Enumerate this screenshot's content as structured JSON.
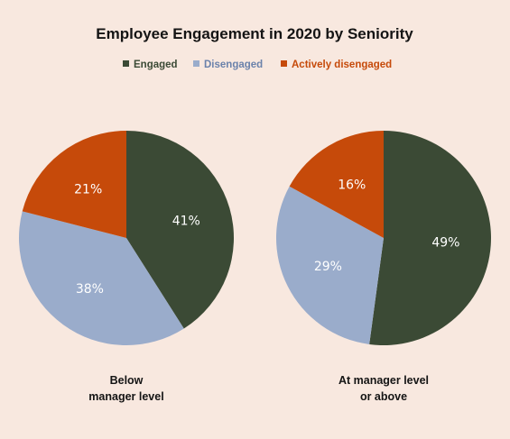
{
  "chart_data": {
    "type": "pie",
    "title": "Employee Engagement in 2020 by Seniority",
    "legend_position": "top",
    "series_names": [
      "Engaged",
      "Disengaged",
      "Actively disengaged"
    ],
    "colors": {
      "Engaged": "#3b4a35",
      "Disengaged": "#9aaccb",
      "Actively disengaged": "#c64a0a"
    },
    "legend_text_colors": {
      "Engaged": "#3b4a35",
      "Disengaged": "#6b82ab",
      "Actively disengaged": "#c64a0a"
    },
    "pies": [
      {
        "caption": [
          "Below",
          "manager level"
        ],
        "slices": [
          {
            "name": "Engaged",
            "value": 41,
            "label": "41%"
          },
          {
            "name": "Disengaged",
            "value": 38,
            "label": "38%"
          },
          {
            "name": "Actively disengaged",
            "value": 21,
            "label": "21%"
          }
        ]
      },
      {
        "caption": [
          "At manager level",
          "or above"
        ],
        "slices": [
          {
            "name": "Engaged",
            "value": 49,
            "label": "49%"
          },
          {
            "name": "Disengaged",
            "value": 29,
            "label": "29%"
          },
          {
            "name": "Actively disengaged",
            "value": 16,
            "label": "16%"
          }
        ]
      }
    ]
  }
}
